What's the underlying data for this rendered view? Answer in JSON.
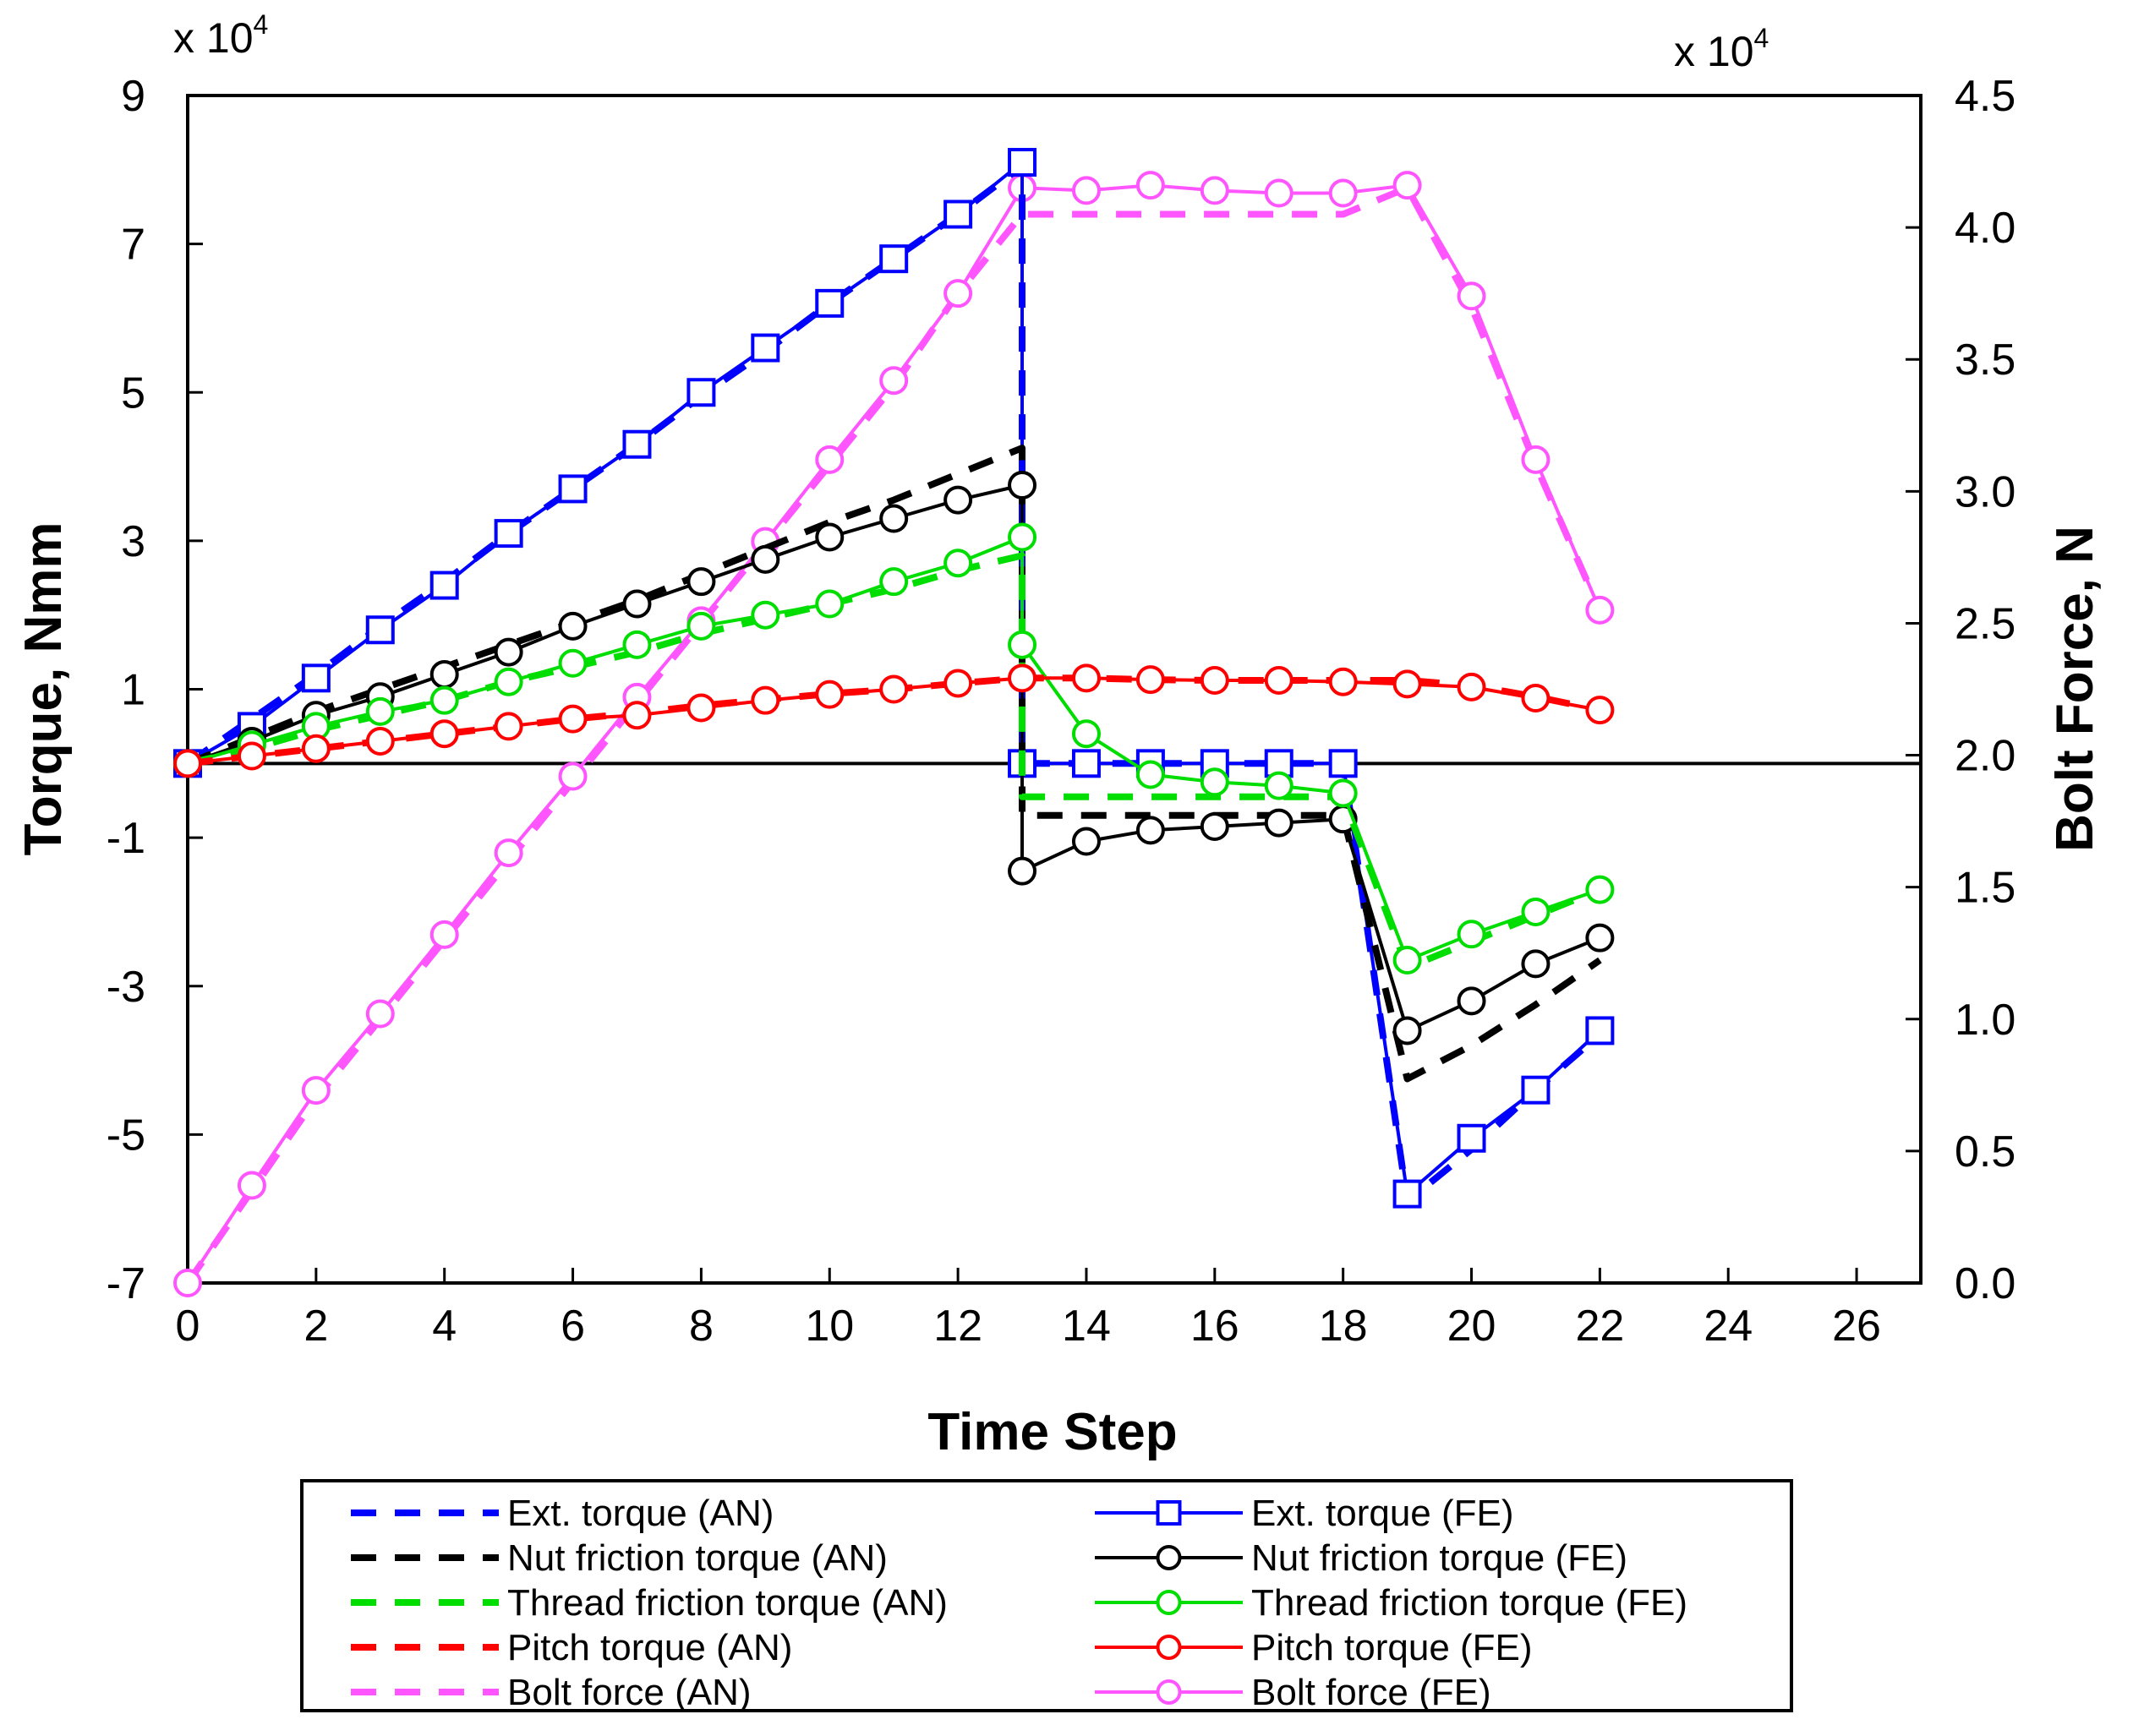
{
  "chart_data": {
    "type": "line",
    "title": "",
    "xlabel": "Time Step",
    "ylabel": "Torque, Nmm",
    "y2label": "Bolt Force, N",
    "y_multiplier": "x 10",
    "y_multiplier_exp": "4",
    "y2_multiplier": "x 10",
    "y2_multiplier_exp": "4",
    "xlim": [
      0,
      27
    ],
    "ylim": [
      -7,
      9
    ],
    "y2lim": [
      0.0,
      4.5
    ],
    "x_ticks": [
      "0",
      "2",
      "4",
      "6",
      "8",
      "10",
      "12",
      "14",
      "16",
      "18",
      "20",
      "22",
      "24",
      "26"
    ],
    "y_ticks": [
      "9",
      "7",
      "5",
      "3",
      "1",
      "-1",
      "-3",
      "-5",
      "-7"
    ],
    "y2_ticks": [
      "4.5",
      "4.0",
      "3.5",
      "3.0",
      "2.5",
      "2.0",
      "1.5",
      "1.0",
      "0.5",
      "0.0"
    ],
    "zero_line": 0,
    "legend_position": "bottom",
    "series": [
      {
        "name": "Ext. torque (AN)",
        "color": "#0000ff",
        "style": "dashed",
        "marker": "none",
        "axis": "left",
        "x": [
          0,
          1,
          2,
          3,
          4,
          5,
          6,
          7,
          8,
          9,
          10,
          11,
          12,
          13,
          13,
          14,
          15,
          16,
          17,
          18,
          19,
          20,
          21,
          22
        ],
        "y": [
          0,
          0.6,
          1.2,
          1.85,
          2.45,
          3.1,
          3.7,
          4.3,
          4.95,
          5.55,
          6.2,
          6.8,
          7.4,
          8.05,
          0,
          0,
          0,
          0,
          0,
          0,
          -5.9,
          -5.2,
          -4.4,
          -3.65
        ]
      },
      {
        "name": "Ext. torque (FE)",
        "color": "#0000ff",
        "style": "solid",
        "marker": "square",
        "axis": "left",
        "x": [
          0,
          1,
          2,
          3,
          4,
          5,
          6,
          7,
          8,
          9,
          10,
          11,
          12,
          13,
          13,
          14,
          15,
          16,
          17,
          18,
          19,
          20,
          21,
          22
        ],
        "y": [
          0,
          0.5,
          1.15,
          1.8,
          2.4,
          3.1,
          3.7,
          4.3,
          5.0,
          5.6,
          6.2,
          6.8,
          7.4,
          8.1,
          0,
          0,
          0,
          0,
          0,
          0,
          -5.8,
          -5.05,
          -4.4,
          -3.6
        ]
      },
      {
        "name": "Nut friction torque (AN)",
        "color": "#000000",
        "style": "dashed",
        "marker": "none",
        "axis": "left",
        "x": [
          0,
          1,
          2,
          3,
          4,
          5,
          6,
          7,
          8,
          9,
          10,
          11,
          12,
          13,
          13,
          14,
          15,
          16,
          17,
          18,
          19,
          20,
          21,
          22
        ],
        "y": [
          0,
          0.35,
          0.7,
          1.0,
          1.3,
          1.6,
          1.9,
          2.2,
          2.55,
          2.9,
          3.25,
          3.55,
          3.9,
          4.25,
          -0.7,
          -0.7,
          -0.7,
          -0.7,
          -0.7,
          -0.7,
          -4.25,
          -3.8,
          -3.25,
          -2.65
        ]
      },
      {
        "name": "Nut friction torque (FE)",
        "color": "#000000",
        "style": "solid",
        "marker": "circle",
        "axis": "left",
        "x": [
          0,
          1,
          2,
          3,
          4,
          5,
          6,
          7,
          8,
          9,
          10,
          11,
          12,
          13,
          13,
          14,
          15,
          16,
          17,
          18,
          19,
          20,
          21,
          22
        ],
        "y": [
          0,
          0.3,
          0.65,
          0.9,
          1.2,
          1.5,
          1.85,
          2.15,
          2.45,
          2.75,
          3.05,
          3.3,
          3.55,
          3.75,
          -1.45,
          -1.05,
          -0.9,
          -0.85,
          -0.8,
          -0.75,
          -3.6,
          -3.2,
          -2.7,
          -2.35
        ]
      },
      {
        "name": "Thread friction torque (AN)",
        "color": "#00dd00",
        "style": "dashed",
        "marker": "none",
        "axis": "left",
        "x": [
          0,
          1,
          2,
          3,
          4,
          5,
          6,
          7,
          8,
          9,
          10,
          11,
          12,
          13,
          13,
          14,
          15,
          16,
          17,
          18,
          19,
          20,
          21,
          22
        ],
        "y": [
          0,
          0.2,
          0.45,
          0.65,
          0.85,
          1.1,
          1.3,
          1.5,
          1.75,
          1.95,
          2.15,
          2.35,
          2.6,
          2.8,
          -0.45,
          -0.45,
          -0.45,
          -0.45,
          -0.45,
          -0.45,
          -2.75,
          -2.4,
          -2.05,
          -1.7
        ]
      },
      {
        "name": "Thread friction torque (FE)",
        "color": "#00dd00",
        "style": "solid",
        "marker": "circle",
        "axis": "left",
        "x": [
          0,
          1,
          2,
          3,
          4,
          5,
          6,
          7,
          8,
          9,
          10,
          11,
          12,
          13,
          13,
          14,
          15,
          16,
          17,
          18,
          19,
          20,
          21,
          22
        ],
        "y": [
          0,
          0.25,
          0.5,
          0.7,
          0.85,
          1.1,
          1.35,
          1.6,
          1.85,
          2.0,
          2.15,
          2.45,
          2.7,
          3.05,
          1.6,
          0.4,
          -0.15,
          -0.25,
          -0.3,
          -0.4,
          -2.65,
          -2.3,
          -2.0,
          -1.7
        ]
      },
      {
        "name": "Pitch torque (AN)",
        "color": "#ff0000",
        "style": "dashed",
        "marker": "none",
        "axis": "left",
        "x": [
          0,
          1,
          2,
          3,
          4,
          5,
          6,
          7,
          8,
          9,
          10,
          11,
          12,
          13,
          14,
          15,
          16,
          17,
          18,
          19,
          20,
          21,
          22
        ],
        "y": [
          0,
          0.1,
          0.2,
          0.3,
          0.4,
          0.5,
          0.6,
          0.68,
          0.78,
          0.86,
          0.94,
          1.0,
          1.08,
          1.15,
          1.15,
          1.13,
          1.12,
          1.12,
          1.12,
          1.12,
          1.05,
          0.9,
          0.72
        ]
      },
      {
        "name": "Pitch torque (FE)",
        "color": "#ff0000",
        "style": "solid",
        "marker": "circle",
        "axis": "left",
        "x": [
          0,
          1,
          2,
          3,
          4,
          5,
          6,
          7,
          8,
          9,
          10,
          11,
          12,
          13,
          14,
          15,
          16,
          17,
          18,
          19,
          20,
          21,
          22
        ],
        "y": [
          0,
          0.1,
          0.2,
          0.3,
          0.4,
          0.5,
          0.6,
          0.65,
          0.75,
          0.85,
          0.93,
          1.0,
          1.08,
          1.15,
          1.15,
          1.13,
          1.12,
          1.12,
          1.1,
          1.07,
          1.03,
          0.88,
          0.72
        ]
      },
      {
        "name": "Bolt force (AN)",
        "color": "#ff55ff",
        "style": "dashed",
        "marker": "none",
        "axis": "right",
        "x": [
          0,
          1,
          2,
          3,
          4,
          5,
          6,
          7,
          8,
          9,
          10,
          11,
          12,
          13,
          14,
          15,
          16,
          17,
          18,
          19,
          20,
          21,
          22
        ],
        "y": [
          0.0,
          0.35,
          0.7,
          1.0,
          1.3,
          1.6,
          1.9,
          2.2,
          2.5,
          2.8,
          3.1,
          3.4,
          3.75,
          4.05,
          4.05,
          4.05,
          4.05,
          4.05,
          4.05,
          4.15,
          3.7,
          3.1,
          2.55
        ]
      },
      {
        "name": "Bolt force (FE)",
        "color": "#ff55ff",
        "style": "solid",
        "marker": "circle",
        "axis": "right",
        "x": [
          0,
          1,
          2,
          3,
          4,
          5,
          6,
          7,
          8,
          9,
          10,
          11,
          12,
          13,
          14,
          15,
          16,
          17,
          18,
          19,
          20,
          21,
          22
        ],
        "y": [
          0.0,
          0.37,
          0.73,
          1.02,
          1.32,
          1.63,
          1.92,
          2.22,
          2.51,
          2.81,
          3.12,
          3.42,
          3.75,
          4.15,
          4.14,
          4.16,
          4.14,
          4.13,
          4.13,
          4.16,
          3.74,
          3.12,
          2.55
        ]
      }
    ]
  }
}
